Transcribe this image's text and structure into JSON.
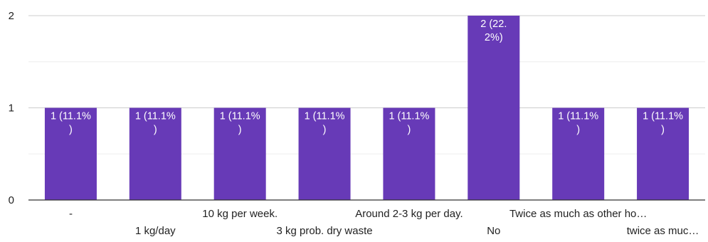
{
  "chart_data": {
    "type": "bar",
    "categories": [
      "-",
      "1 kg/day",
      "10 kg per week.",
      "3 kg prob. dry waste",
      "Around 2-3 kg per day.",
      "No",
      "Twice as much as other ho…",
      "twice as muc…"
    ],
    "values": [
      1,
      1,
      1,
      1,
      1,
      2,
      1,
      1
    ],
    "data_labels": [
      [
        "1 (11.1%",
        ")"
      ],
      [
        "1 (11.1%",
        ")"
      ],
      [
        "1 (11.1%",
        ")"
      ],
      [
        "1 (11.1%",
        ")"
      ],
      [
        "1 (11.1%",
        ")"
      ],
      [
        "2 (22.",
        "2%)"
      ],
      [
        "1 (11.1%",
        ")"
      ],
      [
        "1 (11.1%",
        ")"
      ]
    ],
    "y_ticks": [
      "0",
      "1",
      "2"
    ],
    "ylim": [
      0,
      2
    ],
    "title": "",
    "xlabel": "",
    "ylabel": "",
    "bar_color": "#673ab7",
    "grid": true,
    "legend": "none"
  }
}
